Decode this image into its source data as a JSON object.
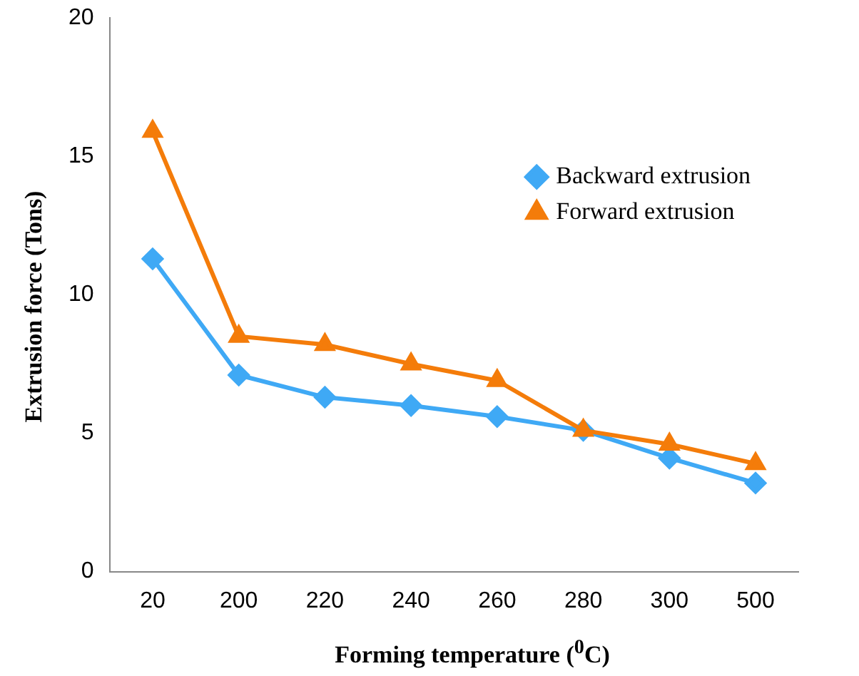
{
  "chart_data": {
    "type": "line",
    "xlabel": "Forming temperature ($^{0}$C)",
    "ylabel": "Extrusion force (Tons)",
    "categories": [
      "20",
      "200",
      "220",
      "240",
      "260",
      "280",
      "300",
      "500"
    ],
    "series": [
      {
        "name": "Backward extrusion",
        "color": "#3fa9f5",
        "marker": "diamond",
        "values": [
          11.3,
          7.1,
          6.3,
          6.0,
          5.6,
          5.1,
          4.1,
          3.2
        ]
      },
      {
        "name": "Forward extrusion",
        "color": "#f47c0a",
        "marker": "triangle",
        "values": [
          15.9,
          8.5,
          8.2,
          7.5,
          6.9,
          5.1,
          4.6,
          3.9
        ]
      }
    ],
    "ylim": [
      0,
      20
    ],
    "yticks": [
      0,
      5,
      10,
      15,
      20
    ],
    "grid": false,
    "legend": "top right",
    "line_style": "solid"
  }
}
